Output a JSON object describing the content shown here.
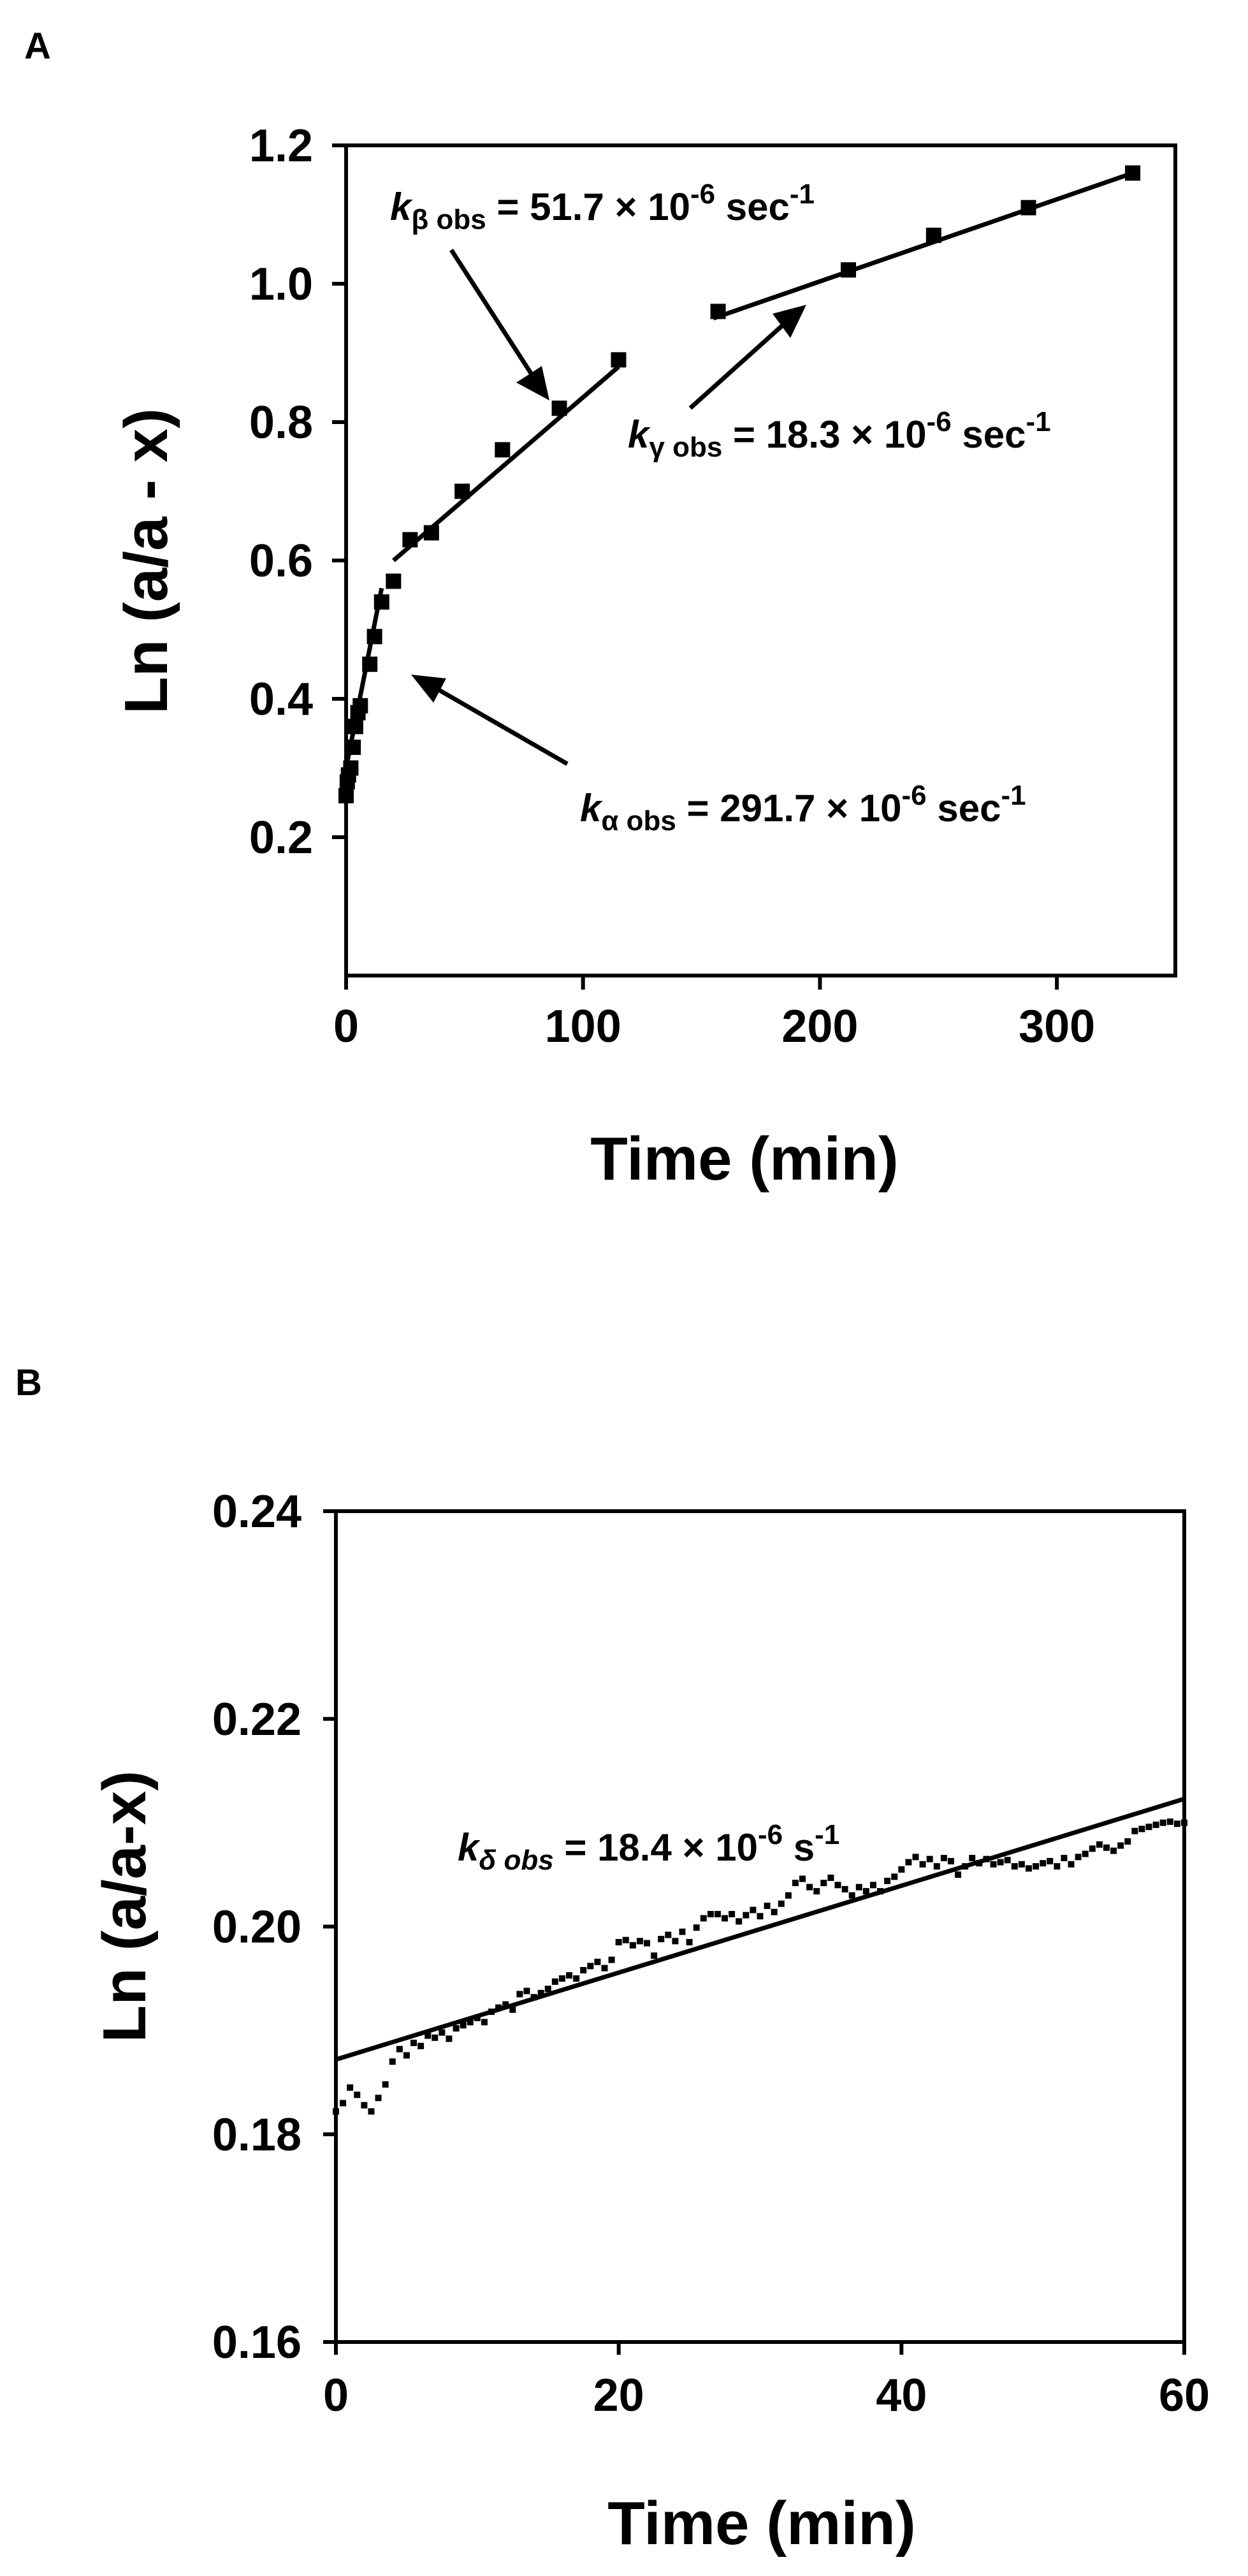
{
  "chart_data": [
    {
      "panel_label": "A",
      "type": "scatter",
      "xlabel": "Time (min)",
      "ylabel": "Ln (a/a - x)",
      "xlim": [
        0,
        350
      ],
      "ylim": [
        0.0,
        1.2
      ],
      "xticks": [
        0,
        100,
        200,
        300
      ],
      "xtick_labels": [
        "0",
        "100",
        "200",
        "300"
      ],
      "yticks": [
        0.2,
        0.4,
        0.6,
        0.8,
        1.0,
        1.2
      ],
      "ytick_labels": [
        "0.2",
        "0.4",
        "0.6",
        "0.8",
        "1.0",
        "1.2"
      ],
      "grid": false,
      "marker": "square",
      "points": [
        [
          0,
          0.26
        ],
        [
          0.5,
          0.28
        ],
        [
          1,
          0.29
        ],
        [
          2,
          0.3
        ],
        [
          3,
          0.33
        ],
        [
          4,
          0.36
        ],
        [
          5,
          0.38
        ],
        [
          6,
          0.39
        ],
        [
          10,
          0.45
        ],
        [
          12,
          0.49
        ],
        [
          15,
          0.54
        ],
        [
          20,
          0.57
        ],
        [
          27,
          0.63
        ],
        [
          36,
          0.64
        ],
        [
          49,
          0.7
        ],
        [
          66,
          0.76
        ],
        [
          90,
          0.82
        ],
        [
          115,
          0.89
        ],
        [
          157,
          0.96
        ],
        [
          212,
          1.02
        ],
        [
          248,
          1.07
        ],
        [
          288,
          1.11
        ],
        [
          332,
          1.16
        ]
      ],
      "fit_lines": [
        {
          "name": "alpha",
          "x": [
            0,
            15
          ],
          "y": [
            0.3,
            0.56
          ]
        },
        {
          "name": "beta",
          "x": [
            20,
            115
          ],
          "y": [
            0.6,
            0.88
          ]
        },
        {
          "name": "gamma",
          "x": [
            155,
            332
          ],
          "y": [
            0.95,
            1.16
          ]
        }
      ],
      "annotations": [
        {
          "k": "k",
          "sub": "β obs",
          "text": " = 51.7 × 10",
          "sup": "-6",
          "unit": " sec",
          "unit_sup": "-1",
          "arrow_to": [
            85,
            0.83
          ]
        },
        {
          "k": "k",
          "sub": "γ obs",
          "text": " = 18.3 × 10",
          "sup": "-6",
          "unit": " sec",
          "unit_sup": "-1",
          "arrow_to": [
            193,
            1.0
          ]
        },
        {
          "k": "k",
          "sub": "α obs",
          "text": " = 291.7 × 10",
          "sup": "-6",
          "unit": " sec",
          "unit_sup": "-1",
          "arrow_to": [
            27,
            0.45
          ]
        }
      ]
    },
    {
      "panel_label": "B",
      "type": "scatter",
      "xlabel": "Time (min)",
      "ylabel": "Ln (a/a-x)",
      "xlim": [
        0,
        60
      ],
      "ylim": [
        0.16,
        0.24
      ],
      "xticks": [
        0,
        20,
        40,
        60
      ],
      "xtick_labels": [
        "0",
        "20",
        "40",
        "60"
      ],
      "yticks": [
        0.16,
        0.18,
        0.2,
        0.22,
        0.24
      ],
      "ytick_labels": [
        "0.16",
        "0.18",
        "0.20",
        "0.22",
        "0.24"
      ],
      "grid": false,
      "marker": "small-square",
      "points": [
        [
          0,
          0.1822
        ],
        [
          0.5,
          0.183
        ],
        [
          1,
          0.1845
        ],
        [
          1.5,
          0.1838
        ],
        [
          2,
          0.1828
        ],
        [
          2.5,
          0.1822
        ],
        [
          3,
          0.1835
        ],
        [
          3.5,
          0.1848
        ],
        [
          4,
          0.187
        ],
        [
          4.5,
          0.1882
        ],
        [
          5,
          0.1876
        ],
        [
          5.5,
          0.1888
        ],
        [
          6,
          0.1885
        ],
        [
          6.5,
          0.1895
        ],
        [
          7,
          0.1893
        ],
        [
          7.5,
          0.1898
        ],
        [
          8,
          0.1892
        ],
        [
          8.5,
          0.1902
        ],
        [
          9,
          0.1905
        ],
        [
          9.5,
          0.1908
        ],
        [
          10,
          0.1912
        ],
        [
          10.5,
          0.1908
        ],
        [
          11,
          0.1918
        ],
        [
          11.5,
          0.1922
        ],
        [
          12,
          0.1925
        ],
        [
          12.5,
          0.192
        ],
        [
          13,
          0.1935
        ],
        [
          13.5,
          0.1938
        ],
        [
          14,
          0.1932
        ],
        [
          14.5,
          0.1936
        ],
        [
          15,
          0.194
        ],
        [
          15.5,
          0.1947
        ],
        [
          16,
          0.195
        ],
        [
          16.5,
          0.1953
        ],
        [
          17,
          0.195
        ],
        [
          17.5,
          0.1958
        ],
        [
          18,
          0.1962
        ],
        [
          18.5,
          0.1966
        ],
        [
          19,
          0.196
        ],
        [
          19.5,
          0.1968
        ],
        [
          20,
          0.1985
        ],
        [
          20.5,
          0.1987
        ],
        [
          21,
          0.1982
        ],
        [
          21.5,
          0.1986
        ],
        [
          22,
          0.1984
        ],
        [
          22.5,
          0.1972
        ],
        [
          23,
          0.1988
        ],
        [
          23.5,
          0.1992
        ],
        [
          24,
          0.1986
        ],
        [
          24.5,
          0.1995
        ],
        [
          25,
          0.1985
        ],
        [
          25.5,
          0.1999
        ],
        [
          26,
          0.2008
        ],
        [
          26.5,
          0.2012
        ],
        [
          27,
          0.2012
        ],
        [
          27.5,
          0.2008
        ],
        [
          28,
          0.2012
        ],
        [
          28.5,
          0.2005
        ],
        [
          29,
          0.2011
        ],
        [
          29.5,
          0.2016
        ],
        [
          30,
          0.201
        ],
        [
          30.5,
          0.202
        ],
        [
          31,
          0.2014
        ],
        [
          31.5,
          0.2022
        ],
        [
          32,
          0.203
        ],
        [
          32.5,
          0.2042
        ],
        [
          33,
          0.2046
        ],
        [
          33.5,
          0.2038
        ],
        [
          34,
          0.2034
        ],
        [
          34.5,
          0.2042
        ],
        [
          35,
          0.2047
        ],
        [
          35.5,
          0.204
        ],
        [
          36,
          0.2036
        ],
        [
          36.5,
          0.203
        ],
        [
          37,
          0.2038
        ],
        [
          37.5,
          0.2034
        ],
        [
          38,
          0.204
        ],
        [
          38.5,
          0.2034
        ],
        [
          39,
          0.2044
        ],
        [
          39.5,
          0.2048
        ],
        [
          40,
          0.2055
        ],
        [
          40.5,
          0.2062
        ],
        [
          41,
          0.2067
        ],
        [
          41.5,
          0.206
        ],
        [
          42,
          0.2065
        ],
        [
          42.5,
          0.2058
        ],
        [
          43,
          0.2066
        ],
        [
          43.5,
          0.2063
        ],
        [
          44,
          0.205
        ],
        [
          44.5,
          0.2058
        ],
        [
          45,
          0.2066
        ],
        [
          45.5,
          0.2061
        ],
        [
          46,
          0.2065
        ],
        [
          46.5,
          0.206
        ],
        [
          47,
          0.2062
        ],
        [
          47.5,
          0.2064
        ],
        [
          48,
          0.2058
        ],
        [
          48.5,
          0.206
        ],
        [
          49,
          0.2056
        ],
        [
          49.5,
          0.2058
        ],
        [
          50,
          0.2061
        ],
        [
          50.5,
          0.2063
        ],
        [
          51,
          0.2058
        ],
        [
          51.5,
          0.2066
        ],
        [
          52,
          0.206
        ],
        [
          52.5,
          0.2067
        ],
        [
          53,
          0.207
        ],
        [
          53.5,
          0.2075
        ],
        [
          54,
          0.2079
        ],
        [
          54.5,
          0.2076
        ],
        [
          55,
          0.2073
        ],
        [
          55.5,
          0.2078
        ],
        [
          56,
          0.2082
        ],
        [
          56.5,
          0.2092
        ],
        [
          57,
          0.2094
        ],
        [
          57.5,
          0.2096
        ],
        [
          58,
          0.2098
        ],
        [
          58.5,
          0.21
        ],
        [
          59,
          0.2101
        ],
        [
          59.5,
          0.2099
        ],
        [
          60,
          0.21
        ]
      ],
      "fit_lines": [
        {
          "name": "delta",
          "x": [
            0,
            60
          ],
          "y": [
            0.1872,
            0.2123
          ]
        }
      ],
      "annotations": [
        {
          "k": "k",
          "sub": "δ obs",
          "text": " = 18.4 × 10",
          "sup": "-6",
          "unit": " s",
          "unit_sup": "-1"
        }
      ]
    }
  ]
}
